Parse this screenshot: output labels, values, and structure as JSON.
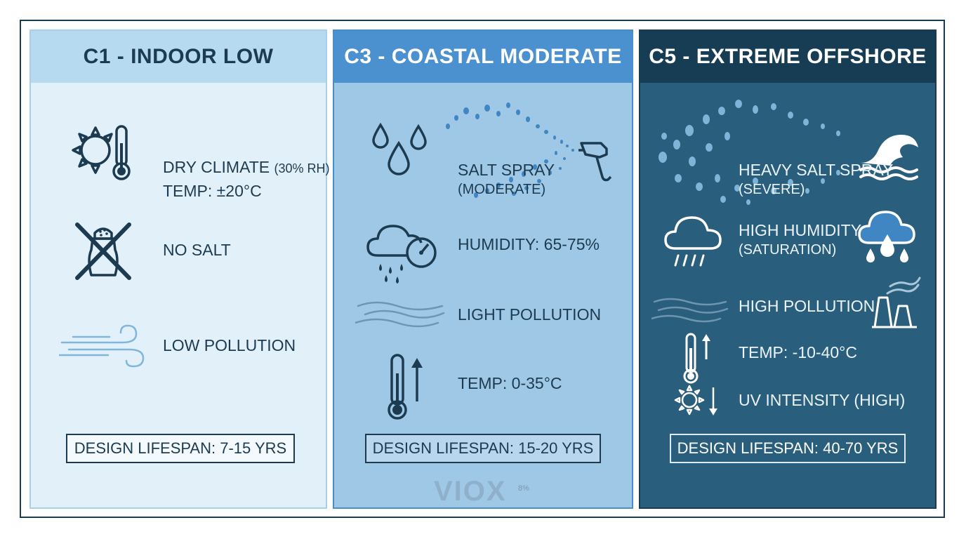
{
  "panels": [
    {
      "title": "C1 - INDOOR LOW",
      "items": [
        {
          "line1": "DRY CLIMATE",
          "line1_suffix": "(30% RH)",
          "line2": "TEMP: ±20°C",
          "icon": "sun-thermometer-icon"
        },
        {
          "line1": "NO SALT",
          "icon": "no-salt-icon"
        },
        {
          "line1": "LOW POLLUTION",
          "icon": "wind-icon"
        }
      ],
      "lifespan": "DESIGN LIFESPAN: 7-15 YRS"
    },
    {
      "title": "C3 - COASTAL MODERATE",
      "items": [
        {
          "line1": "SALT SPRAY",
          "line2": "(MODERATE)",
          "icon": "salt-spray-icon"
        },
        {
          "line1": "HUMIDITY: 65-75%",
          "icon": "rain-cloud-gauge-icon"
        },
        {
          "line1": "LIGHT POLLUTION",
          "icon": "haze-icon"
        },
        {
          "line1": "TEMP: 0-35°C",
          "icon": "thermometer-up-icon"
        }
      ],
      "lifespan": "DESIGN LIFESPAN: 15-20 YRS",
      "watermark": "VIOX",
      "watermark_sup": "8%"
    },
    {
      "title": "C5 - EXTREME OFFSHORE",
      "items": [
        {
          "line1": "HEAVY SALT SPRAY",
          "line2": "(SEVERE)",
          "icon": "wave-spray-icon"
        },
        {
          "line1": "HIGH HUMIDITY",
          "line2": "(SATURATION)",
          "icon": "rain-cloud-icon"
        },
        {
          "line1": "HIGH POLLUTION",
          "icon": "factory-icon"
        },
        {
          "line1": "TEMP: -10-40°C",
          "icon": "thermometer-updown-icon"
        },
        {
          "line1": "UV INTENSITY (HIGH)",
          "icon": "sun-down-icon"
        }
      ],
      "lifespan": "DESIGN LIFESPAN: 40-70 YRS"
    }
  ],
  "colors": {
    "dark": "#1d3b50",
    "panel1": "#e2f0f9",
    "panel2": "#9fc8e6",
    "panel3": "#2a5e7d",
    "drop": "#3f86c2"
  }
}
